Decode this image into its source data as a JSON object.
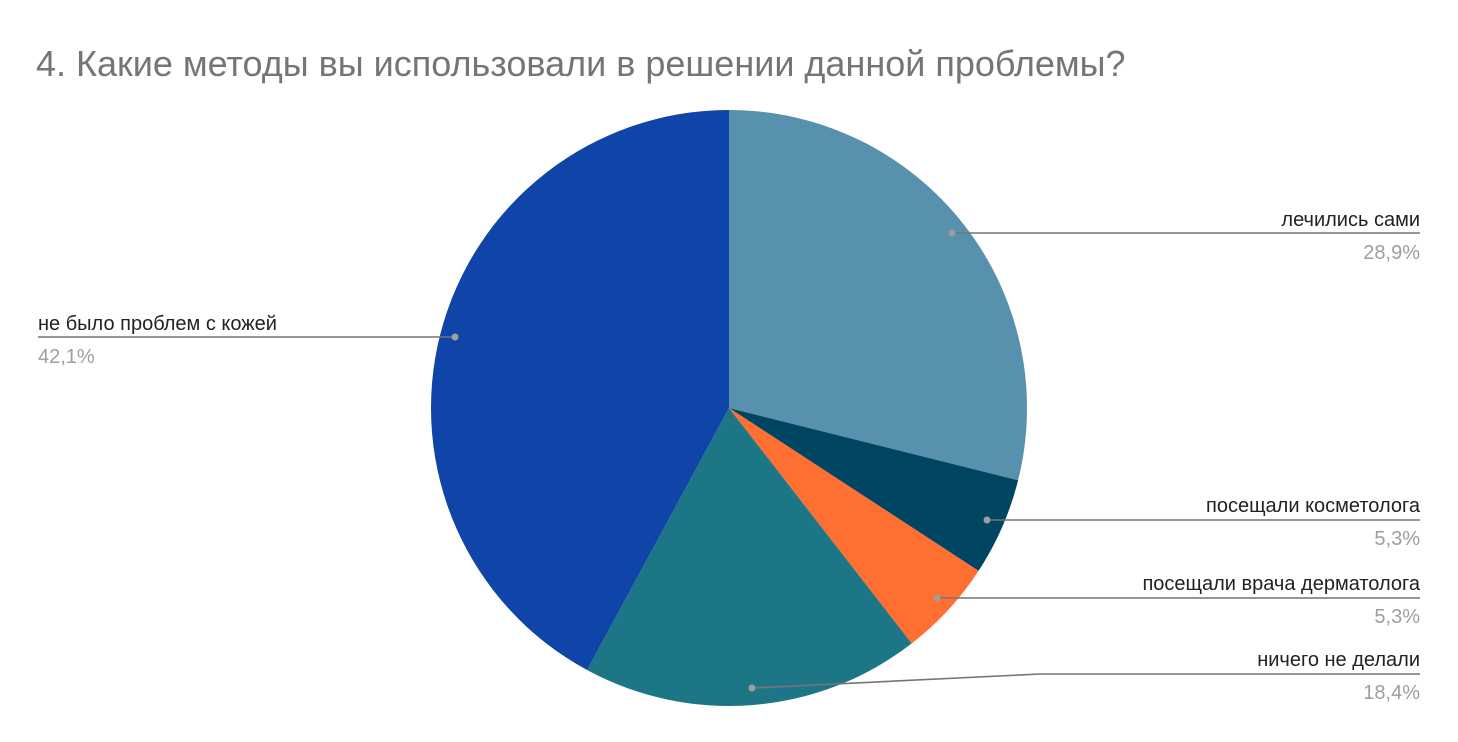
{
  "chart_data": {
    "type": "pie",
    "title": "4. Какие методы вы использовали в решении данной проблемы?",
    "slices": [
      {
        "label": "лечились сами",
        "value": 28.9,
        "percent_label": "28,9%",
        "color": "#5891ad"
      },
      {
        "label": "посещали косметолога",
        "value": 5.3,
        "percent_label": "5,3%",
        "color": "#004561"
      },
      {
        "label": "посещали врача дерматолога",
        "value": 5.3,
        "percent_label": "5,3%",
        "color": "#ff6f31"
      },
      {
        "label": "ничего не делали",
        "value": 18.4,
        "percent_label": "18,4%",
        "color": "#1c7685"
      },
      {
        "label": "не было проблем с кожей",
        "value": 42.1,
        "percent_label": "42,1%",
        "color": "#0f45a8"
      }
    ],
    "start_angle": "12 o'clock",
    "direction": "clockwise",
    "legend": "none"
  }
}
